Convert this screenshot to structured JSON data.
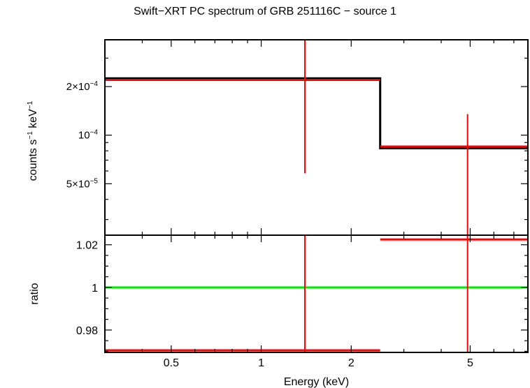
{
  "title": "Swift−XRT PC spectrum of GRB 251116C − source 1",
  "chart_data": [
    {
      "panel": "spectrum",
      "type": "line",
      "xscale": "log",
      "yscale": "log",
      "xlim": [
        0.3,
        7.8
      ],
      "ylim": [
        2.4e-05,
        0.00039
      ],
      "ylabel_parts": {
        "counts": "counts s",
        "sup1": "−1",
        "kev": " keV",
        "sup2": "−1"
      },
      "yticks": [
        {
          "value": 0.0002,
          "label_base": "2×10",
          "label_exp": "−4"
        },
        {
          "value": 0.0001,
          "label_base": "10",
          "label_exp": "−4"
        },
        {
          "value": 5e-05,
          "label_base": "5×10",
          "label_exp": "−5"
        }
      ],
      "series": [
        {
          "role": "data",
          "color": "#ff0000",
          "points": [
            {
              "x": 1.4,
              "xlo": 0.3,
              "xhi": 2.5,
              "y": 0.00022,
              "ylo": 5.8e-05,
              "yhi": 0.00039
            },
            {
              "x": 4.9,
              "xlo": 2.5,
              "xhi": 7.8,
              "y": 8.5e-05,
              "ylo": 2.4e-05,
              "yhi": 0.000135
            }
          ]
        },
        {
          "role": "model",
          "color": "#000000",
          "steps": [
            {
              "xlo": 0.3,
              "xhi": 2.5,
              "y": 0.000225
            },
            {
              "xlo": 2.5,
              "xhi": 7.8,
              "y": 8.3e-05
            }
          ]
        }
      ]
    },
    {
      "panel": "ratio",
      "type": "line",
      "xscale": "log",
      "xlim": [
        0.3,
        7.8
      ],
      "ylim": [
        0.9695,
        1.0245
      ],
      "xlabel": "Energy (keV)",
      "ylabel": "ratio",
      "xticks": [
        {
          "value": 0.5,
          "label": "0.5"
        },
        {
          "value": 1,
          "label": "1"
        },
        {
          "value": 2,
          "label": "2"
        },
        {
          "value": 5,
          "label": "5"
        }
      ],
      "yticks": [
        {
          "value": 0.98,
          "label": "0.98"
        },
        {
          "value": 1,
          "label": "1"
        },
        {
          "value": 1.02,
          "label": "1.02"
        }
      ],
      "reference_line": {
        "y": 1,
        "color": "#00ee00"
      },
      "series": [
        {
          "role": "data",
          "color": "#ff0000",
          "points": [
            {
              "x": 1.4,
              "xlo": 0.3,
              "xhi": 2.5,
              "y": 0.9705,
              "ylo": 0.94,
              "yhi": 1.05
            },
            {
              "x": 4.9,
              "xlo": 2.5,
              "xhi": 7.8,
              "y": 1.0225,
              "ylo": 0.94,
              "yhi": 1.05
            }
          ]
        }
      ]
    }
  ]
}
